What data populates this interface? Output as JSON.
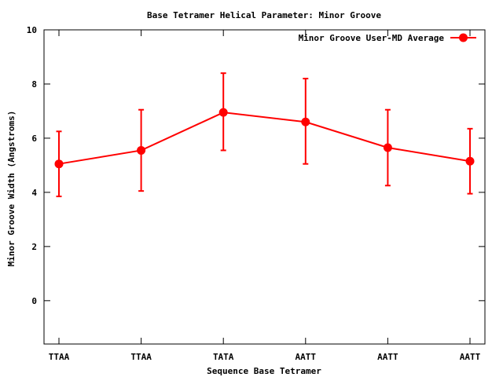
{
  "chart_data": {
    "type": "line",
    "title": "Base Tetramer Helical Parameter: Minor Groove",
    "xlabel": "Sequence Base Tetramer",
    "ylabel": "Minor Groove Width (Angstroms)",
    "categories": [
      "TTAA",
      "TTAA",
      "TATA",
      "AATT",
      "AATT",
      "AATT"
    ],
    "ylim": [
      -1.6,
      10
    ],
    "yticks": [
      0,
      2,
      4,
      6,
      8,
      10
    ],
    "grid": false,
    "legend_position": "top-right",
    "series": [
      {
        "name": "Minor Groove User-MD Average",
        "color": "#ff0000",
        "values": [
          5.05,
          5.55,
          6.95,
          6.6,
          5.65,
          5.15
        ],
        "error_low": [
          3.85,
          4.05,
          5.55,
          5.05,
          4.25,
          3.95
        ],
        "error_high": [
          6.25,
          7.05,
          8.4,
          8.2,
          7.05,
          6.35
        ]
      }
    ]
  }
}
